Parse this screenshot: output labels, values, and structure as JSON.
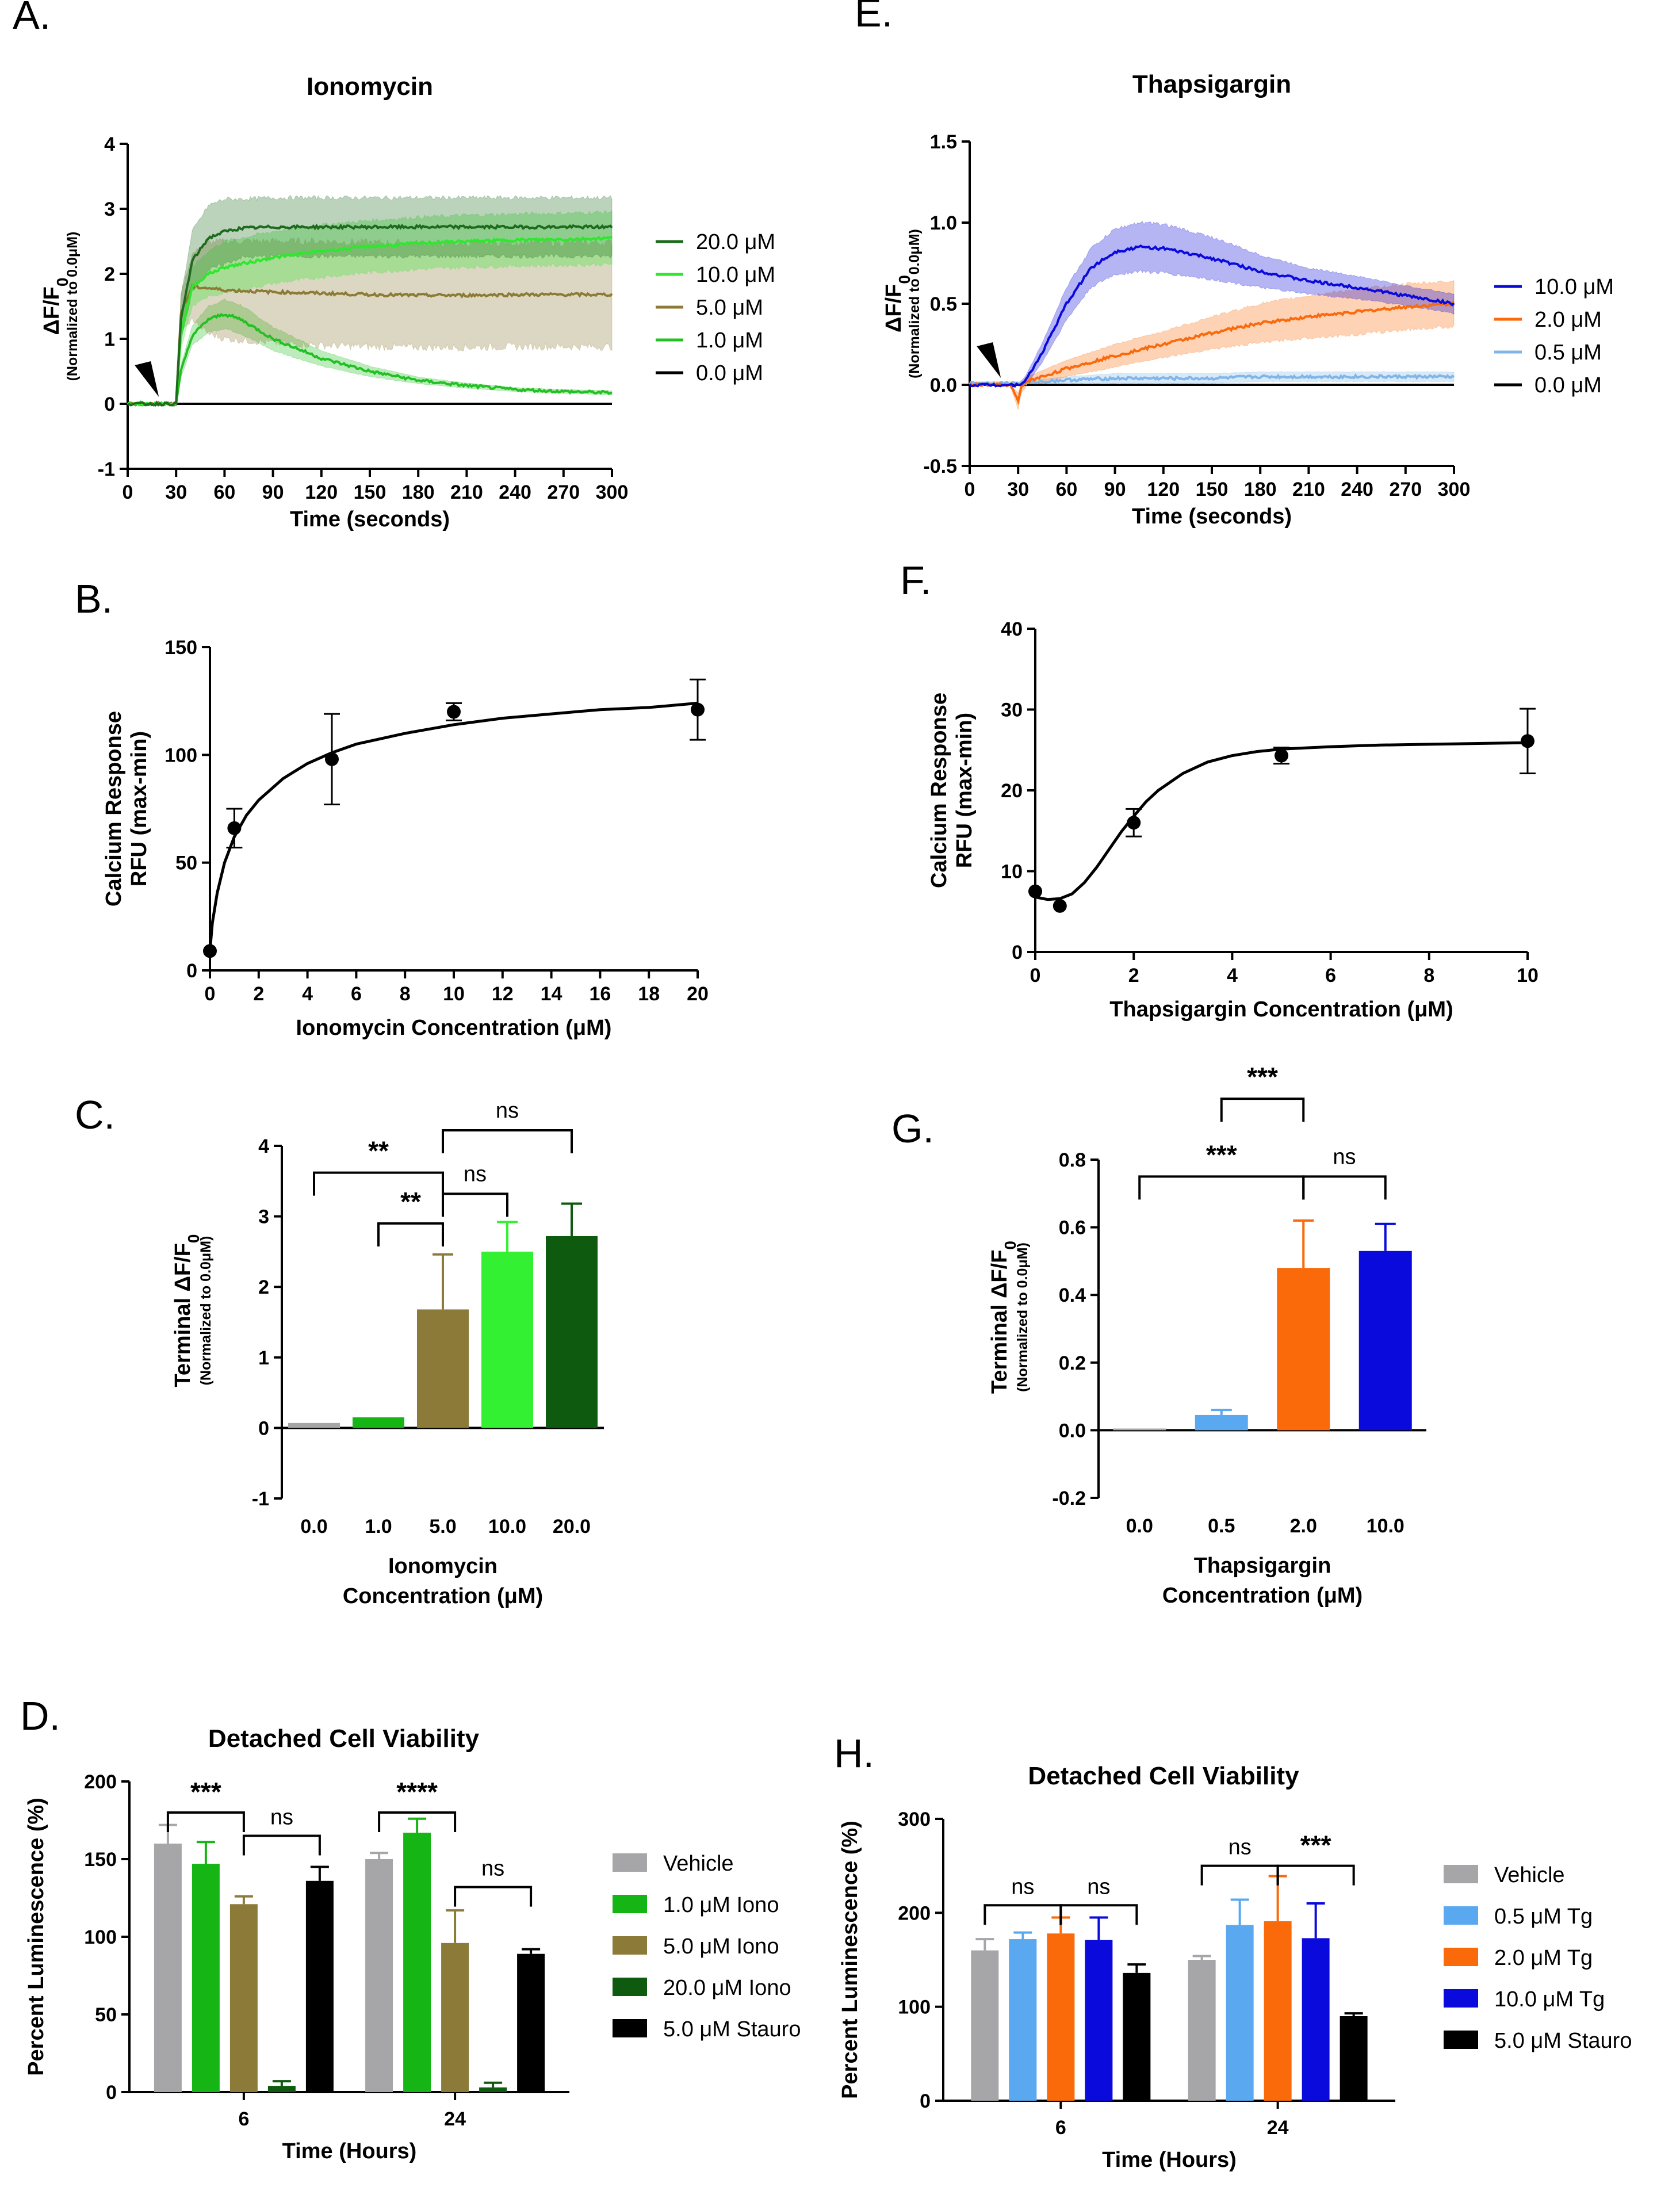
{
  "colors": {
    "iono_20": "#1e6b1e",
    "iono_10": "#2ee82e",
    "iono_5": "#8c7a35",
    "iono_1": "#22c022",
    "zero": "#000000",
    "tg_10": "#0a0adc",
    "tg_2": "#fa6a0a",
    "tg_05": "#7fb5e8",
    "vehicle": "#a6a6a8",
    "tg_05_bar": "#5aa8f0",
    "iono_20_bar": "#0e5a0e",
    "iono_10_bar": "#33f033",
    "iono_5_bar": "#8c7a38",
    "iono_1_bar": "#16b516"
  },
  "chart_data": [
    {
      "id": "A",
      "panel_label": "A.",
      "type": "line",
      "title": "Ionomycin",
      "xlabel": "Time (seconds)",
      "ylabel": "ΔF/F0",
      "ylabel_sub": "(Normalized to 0.0μM)",
      "xlim": [
        0,
        300
      ],
      "ylim": [
        -1,
        4
      ],
      "xticks": [
        0,
        30,
        60,
        90,
        120,
        150,
        180,
        210,
        240,
        270,
        300
      ],
      "yticks": [
        -1,
        0,
        1,
        2,
        3,
        4
      ],
      "arrow_x": 30,
      "series": [
        {
          "name": "20.0 μM",
          "color": "iono_20",
          "x": [
            0,
            30,
            33,
            40,
            50,
            60,
            70,
            90,
            120,
            150,
            180,
            210,
            240,
            270,
            300
          ],
          "y": [
            0,
            0,
            1.3,
            2.2,
            2.55,
            2.65,
            2.7,
            2.72,
            2.72,
            2.72,
            2.72,
            2.72,
            2.72,
            2.72,
            2.72
          ],
          "band": [
            0,
            0,
            0.35,
            0.45,
            0.5,
            0.5,
            0.45,
            0.45,
            0.45,
            0.45,
            0.45,
            0.45,
            0.45,
            0.45,
            0.45
          ]
        },
        {
          "name": "10.0 μM",
          "color": "iono_10",
          "x": [
            0,
            30,
            33,
            40,
            50,
            60,
            90,
            120,
            150,
            180,
            210,
            240,
            270,
            300
          ],
          "y": [
            0,
            0,
            1.1,
            1.8,
            2.0,
            2.1,
            2.25,
            2.35,
            2.42,
            2.47,
            2.5,
            2.52,
            2.53,
            2.55
          ],
          "band": [
            0,
            0,
            0.25,
            0.3,
            0.35,
            0.4,
            0.4,
            0.4,
            0.4,
            0.4,
            0.4,
            0.4,
            0.4,
            0.4
          ]
        },
        {
          "name": "5.0 μM",
          "color": "iono_5",
          "x": [
            0,
            30,
            33,
            40,
            50,
            60,
            90,
            120,
            150,
            180,
            210,
            240,
            270,
            300
          ],
          "y": [
            0,
            0,
            1.4,
            1.8,
            1.78,
            1.75,
            1.72,
            1.7,
            1.68,
            1.67,
            1.67,
            1.68,
            1.68,
            1.68
          ],
          "band": [
            0,
            0,
            0.3,
            0.5,
            0.7,
            0.75,
            0.78,
            0.8,
            0.8,
            0.8,
            0.8,
            0.8,
            0.8,
            0.8
          ]
        },
        {
          "name": "1.0 μM",
          "color": "iono_1",
          "x": [
            0,
            30,
            33,
            40,
            50,
            60,
            70,
            90,
            120,
            150,
            180,
            210,
            240,
            270,
            300
          ],
          "y": [
            0,
            0,
            0.5,
            1.05,
            1.3,
            1.38,
            1.3,
            1.0,
            0.7,
            0.5,
            0.36,
            0.28,
            0.22,
            0.19,
            0.17
          ],
          "band": [
            0,
            0,
            0.1,
            0.15,
            0.2,
            0.22,
            0.22,
            0.18,
            0.12,
            0.08,
            0.05,
            0.04,
            0.03,
            0.03,
            0.03
          ]
        },
        {
          "name": "0.0 μM",
          "color": "zero",
          "x": [
            0,
            300
          ],
          "y": [
            0,
            0
          ],
          "band": [
            0,
            0
          ]
        }
      ]
    },
    {
      "id": "E",
      "panel_label": "E.",
      "type": "line",
      "title": "Thapsigargin",
      "xlabel": "Time (seconds)",
      "ylabel": "ΔF/F0",
      "ylabel_sub": "(Normalized to 0.0μM)",
      "xlim": [
        0,
        300
      ],
      "ylim": [
        -0.5,
        1.5
      ],
      "xticks": [
        0,
        30,
        60,
        90,
        120,
        150,
        180,
        210,
        240,
        270,
        300
      ],
      "yticks": [
        -0.5,
        0.0,
        0.5,
        1.0,
        1.5
      ],
      "arrow_x": 30,
      "series": [
        {
          "name": "10.0 μM",
          "color": "tg_10",
          "x": [
            0,
            30,
            35,
            45,
            60,
            75,
            90,
            105,
            120,
            150,
            180,
            210,
            240,
            270,
            300
          ],
          "y": [
            0,
            0,
            0.03,
            0.2,
            0.5,
            0.72,
            0.82,
            0.85,
            0.84,
            0.78,
            0.7,
            0.64,
            0.6,
            0.55,
            0.5
          ],
          "band": [
            0,
            0,
            0.03,
            0.06,
            0.1,
            0.12,
            0.14,
            0.15,
            0.15,
            0.13,
            0.1,
            0.08,
            0.07,
            0.06,
            0.06
          ]
        },
        {
          "name": "2.0 μM",
          "color": "tg_2",
          "x": [
            0,
            25,
            30,
            32,
            35,
            45,
            60,
            90,
            120,
            150,
            180,
            210,
            240,
            270,
            300
          ],
          "y": [
            0,
            0,
            -0.1,
            -0.02,
            0.02,
            0.05,
            0.1,
            0.18,
            0.25,
            0.32,
            0.38,
            0.42,
            0.45,
            0.48,
            0.5
          ],
          "band": [
            0,
            0,
            0.05,
            0.03,
            0.03,
            0.04,
            0.05,
            0.07,
            0.08,
            0.1,
            0.12,
            0.13,
            0.14,
            0.14,
            0.14
          ]
        },
        {
          "name": "0.5 μM",
          "color": "tg_05",
          "x": [
            0,
            30,
            60,
            90,
            120,
            150,
            180,
            210,
            240,
            270,
            300
          ],
          "y": [
            0.01,
            0.01,
            0.03,
            0.04,
            0.04,
            0.04,
            0.05,
            0.05,
            0.05,
            0.05,
            0.05
          ],
          "band": [
            0.01,
            0.01,
            0.02,
            0.03,
            0.03,
            0.03,
            0.03,
            0.03,
            0.03,
            0.03,
            0.03
          ]
        },
        {
          "name": "0.0 μM",
          "color": "zero",
          "x": [
            0,
            300
          ],
          "y": [
            0,
            0
          ],
          "band": [
            0,
            0
          ]
        }
      ]
    },
    {
      "id": "B",
      "panel_label": "B.",
      "type": "scatter",
      "xlabel": "Ionomycin Concentration (μM)",
      "ylabel": "Calcium Response",
      "ylabel2": "RFU (max-min)",
      "xlim": [
        0,
        20
      ],
      "ylim": [
        0,
        150
      ],
      "xticks": [
        0,
        2,
        4,
        6,
        8,
        10,
        12,
        14,
        16,
        18,
        20
      ],
      "yticks": [
        0,
        50,
        100,
        150
      ],
      "points": [
        {
          "x": 0,
          "y": 9,
          "err": 0
        },
        {
          "x": 1,
          "y": 66,
          "err": 9
        },
        {
          "x": 5,
          "y": 98,
          "err": 21
        },
        {
          "x": 10,
          "y": 120,
          "err": 4
        },
        {
          "x": 20,
          "y": 121,
          "err": 14
        }
      ],
      "fit": {
        "x": [
          0,
          0.1,
          0.3,
          0.6,
          1,
          1.5,
          2,
          3,
          4,
          5,
          6,
          8,
          10,
          12,
          14,
          16,
          18,
          20
        ],
        "y": [
          9,
          22,
          36,
          50,
          62,
          72,
          79,
          89,
          96,
          101,
          105,
          110,
          114,
          117,
          119,
          121,
          122,
          124
        ]
      }
    },
    {
      "id": "F",
      "panel_label": "F.",
      "type": "scatter",
      "xlabel": "Thapsigargin Concentration (μM)",
      "ylabel": "Calcium Response",
      "ylabel2": "RFU (max-min)",
      "xlim": [
        0,
        10
      ],
      "ylim": [
        0,
        40
      ],
      "xticks": [
        0,
        2,
        4,
        6,
        8,
        10
      ],
      "yticks": [
        0,
        10,
        20,
        30,
        40
      ],
      "points": [
        {
          "x": 0,
          "y": 7.5,
          "err": 0
        },
        {
          "x": 0.5,
          "y": 5.7,
          "err": 0
        },
        {
          "x": 2,
          "y": 16,
          "err": 1.7
        },
        {
          "x": 5,
          "y": 24.3,
          "err": 1
        },
        {
          "x": 10,
          "y": 26.1,
          "err": 4
        }
      ],
      "fit": {
        "x": [
          0,
          0.25,
          0.5,
          0.75,
          1,
          1.25,
          1.5,
          1.75,
          2,
          2.25,
          2.5,
          3,
          3.5,
          4,
          4.5,
          5,
          6,
          7,
          8,
          9,
          10
        ],
        "y": [
          6.8,
          6.5,
          6.6,
          7.2,
          8.6,
          10.5,
          12.7,
          14.9,
          16.8,
          18.6,
          20.0,
          22.1,
          23.5,
          24.3,
          24.8,
          25.1,
          25.4,
          25.6,
          25.7,
          25.8,
          25.9
        ]
      }
    },
    {
      "id": "C",
      "panel_label": "C.",
      "type": "bar",
      "ylabel": "Terminal ΔF/F0",
      "ylabel_sub": "(Normalized to 0.0μM)",
      "xlabel_lines": [
        "Ionomycin",
        "Concentration (μM)"
      ],
      "ylim": [
        -1,
        4
      ],
      "yticks": [
        -1,
        0,
        1,
        2,
        3,
        4
      ],
      "categories": [
        "0.0",
        "1.0",
        "5.0",
        "10.0",
        "20.0"
      ],
      "values": [
        0.07,
        0.15,
        1.68,
        2.5,
        2.72
      ],
      "errors": [
        0,
        0,
        0.78,
        0.42,
        0.46
      ],
      "colors": [
        "vehicle",
        "iono_1_bar",
        "iono_5_bar",
        "iono_10_bar",
        "iono_20_bar"
      ],
      "brackets": [
        {
          "from": 0,
          "to": 2,
          "y": 3.62,
          "label": "**"
        },
        {
          "from": 1,
          "to": 2,
          "y": 2.9,
          "label": "**"
        },
        {
          "from": 2,
          "to": 4,
          "y": 4.22,
          "label": "ns"
        },
        {
          "from": 2,
          "to": 3,
          "y": 3.32,
          "label": "ns"
        }
      ]
    },
    {
      "id": "G",
      "panel_label": "G.",
      "type": "bar",
      "ylabel": "Terminal ΔF/F0",
      "ylabel_sub": "(Normalized to 0.0μM)",
      "xlabel_lines": [
        "Thapsigargin",
        "Concentration (μM)"
      ],
      "ylim": [
        -0.2,
        0.8
      ],
      "yticks": [
        -0.2,
        0.0,
        0.2,
        0.4,
        0.6,
        0.8
      ],
      "categories": [
        "0.0",
        "0.5",
        "2.0",
        "10.0"
      ],
      "values": [
        0.005,
        0.045,
        0.48,
        0.53
      ],
      "errors": [
        0,
        0.015,
        0.14,
        0.08
      ],
      "colors": [
        "vehicle",
        "tg_05_bar",
        "tg_2",
        "tg_10"
      ],
      "brackets": [
        {
          "from": 1,
          "to": 2,
          "y": 0.98,
          "label": "***"
        },
        {
          "from": 0,
          "to": 2,
          "y": 0.75,
          "label": "***"
        },
        {
          "from": 2,
          "to": 3,
          "y": 0.75,
          "label": "ns"
        }
      ]
    },
    {
      "id": "D",
      "panel_label": "D.",
      "type": "bar",
      "title": "Detached Cell Viability",
      "ylabel": "Percent Luminescence (%)",
      "xlabel": "Time (Hours)",
      "ylim": [
        0,
        200
      ],
      "yticks": [
        0,
        50,
        100,
        150,
        200
      ],
      "groups": [
        "6",
        "24"
      ],
      "series": [
        {
          "name": "Vehicle",
          "color": "vehicle",
          "values": [
            160,
            150
          ],
          "errors": [
            12,
            4
          ]
        },
        {
          "name": "1.0 μM Iono",
          "color": "iono_1_bar",
          "values": [
            147,
            167
          ],
          "errors": [
            14,
            9
          ]
        },
        {
          "name": "5.0 μM Iono",
          "color": "iono_5_bar",
          "values": [
            121,
            96
          ],
          "errors": [
            5,
            21
          ]
        },
        {
          "name": "20.0 μM Iono",
          "color": "iono_20_bar",
          "values": [
            4,
            3
          ],
          "errors": [
            3,
            3
          ]
        },
        {
          "name": "5.0 μM Stauro",
          "color": "zero",
          "values": [
            136,
            89
          ],
          "errors": [
            9,
            3
          ]
        }
      ],
      "brackets": [
        {
          "group": 0,
          "from": 0,
          "to": 2,
          "y": 180,
          "label": "***"
        },
        {
          "group": 0,
          "from": 2,
          "to": 4,
          "y": 165,
          "label": "ns"
        },
        {
          "group": 1,
          "from": 0,
          "to": 2,
          "y": 180,
          "label": "****"
        },
        {
          "group": 1,
          "from": 2,
          "to": 4,
          "y": 132,
          "label": "ns"
        }
      ]
    },
    {
      "id": "H",
      "panel_label": "H.",
      "type": "bar",
      "title": "Detached Cell Viability",
      "ylabel": "Percent Luminescence (%)",
      "xlabel": "Time (Hours)",
      "ylim": [
        0,
        300
      ],
      "yticks": [
        0,
        100,
        200,
        300
      ],
      "groups": [
        "6",
        "24"
      ],
      "series": [
        {
          "name": "Vehicle",
          "color": "vehicle",
          "values": [
            160,
            150
          ],
          "errors": [
            12,
            4
          ]
        },
        {
          "name": "0.5 μM Tg",
          "color": "tg_05_bar",
          "values": [
            172,
            187
          ],
          "errors": [
            7,
            27
          ]
        },
        {
          "name": "2.0 μM Tg",
          "color": "tg_2",
          "values": [
            178,
            191
          ],
          "errors": [
            17,
            48
          ]
        },
        {
          "name": "10.0 μM Tg",
          "color": "tg_10",
          "values": [
            171,
            173
          ],
          "errors": [
            24,
            37
          ]
        },
        {
          "name": "5.0 μM Stauro",
          "color": "zero",
          "values": [
            136,
            90
          ],
          "errors": [
            9,
            3
          ]
        }
      ],
      "brackets": [
        {
          "group": 0,
          "from": 0,
          "to": 2,
          "y": 208,
          "label": "ns"
        },
        {
          "group": 0,
          "from": 2,
          "to": 4,
          "y": 208,
          "label": "ns"
        },
        {
          "group": 1,
          "from": 0,
          "to": 2,
          "y": 250,
          "label": "ns"
        },
        {
          "group": 1,
          "from": 2,
          "to": 4,
          "y": 250,
          "label": "***"
        }
      ]
    }
  ]
}
